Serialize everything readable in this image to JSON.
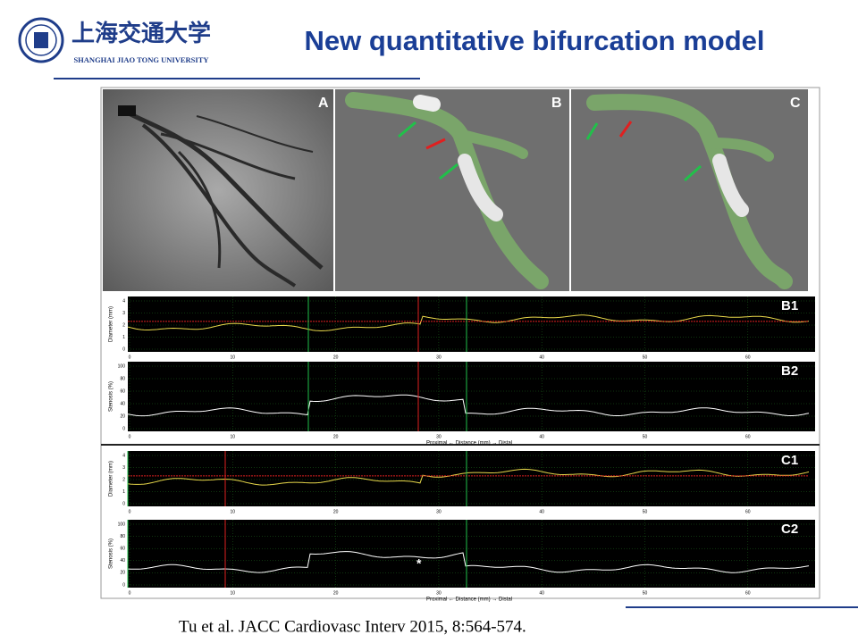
{
  "header": {
    "logo_cn": "上海交通大学",
    "logo_en": "SHANGHAI JIAO TONG UNIVERSITY",
    "title": "New quantitative bifurcation model"
  },
  "images": [
    {
      "label": "A"
    },
    {
      "label": "B"
    },
    {
      "label": "C"
    }
  ],
  "plots": [
    {
      "label": "B1",
      "y_label": "Diameter (mm)",
      "y_ticks": [
        "0",
        "1",
        "2",
        "3",
        "4"
      ],
      "x_ticks": [
        "0",
        "10",
        "20",
        "30",
        "40",
        "50",
        "60"
      ]
    },
    {
      "label": "B2",
      "y_label": "Stenosis (%)",
      "y_ticks": [
        "0",
        "20",
        "40",
        "60",
        "80",
        "100"
      ],
      "x_ticks": [
        "0",
        "10",
        "20",
        "30",
        "40",
        "50",
        "60"
      ],
      "x_label": "Proximal  ←  Distance (mm)  →  Distal"
    },
    {
      "label": "C1",
      "y_label": "Diameter (mm)",
      "y_ticks": [
        "0",
        "1",
        "2",
        "3",
        "4"
      ],
      "x_ticks": [
        "0",
        "10",
        "20",
        "30",
        "40",
        "50",
        "60"
      ]
    },
    {
      "label": "C2",
      "y_label": "Stenosis (%)",
      "y_ticks": [
        "0",
        "20",
        "40",
        "60",
        "80",
        "100"
      ],
      "x_ticks": [
        "0",
        "10",
        "20",
        "30",
        "40",
        "50",
        "60"
      ],
      "x_label": "Proximal  ←  Distance (mm)  →  Distal",
      "annotation": "*"
    }
  ],
  "citation": "Tu et al. JACC Cardiovasc Interv 2015, 8:564-574."
}
